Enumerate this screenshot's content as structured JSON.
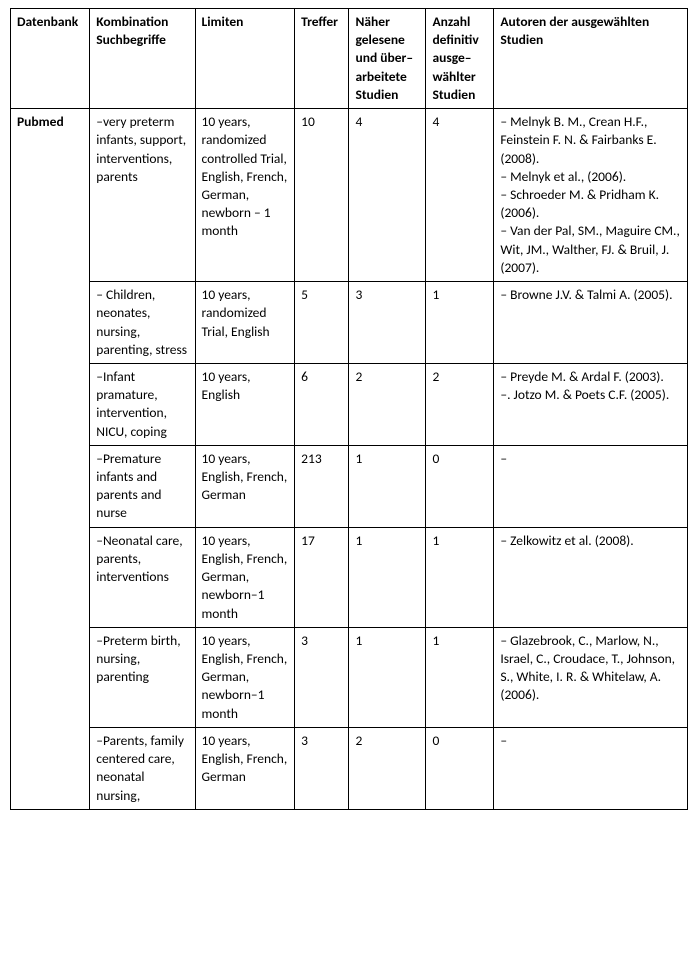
{
  "headers": {
    "db": "Datenbank",
    "komb": "Kombination Suchbegriffe",
    "lim": "Limiten",
    "tref": "Treffer",
    "nah": "Näher gelesene und über–arbeitete Studien",
    "anz": "Anzahl definitiv ausge–wählter Studien",
    "aut": "Autoren der ausgewählten Studien"
  },
  "database": "Pubmed",
  "rows": [
    {
      "komb": "–very preterm infants, support, interventions, parents",
      "lim": "10 years, randomized controlled Trial, English, French, German, newborn – 1 month",
      "tref": "10",
      "nah": "4",
      "anz": "4",
      "aut": "– Melnyk B. M., Crean H.F., Feinstein F. N. & Fairbanks E. (2008).\n– Melnyk et al., (2006).\n– Schroeder M. & Pridham K. (2006).\n– Van der Pal, SM., Maguire CM., Wit, JM., Walther, FJ. & Bruil, J. (2007)."
    },
    {
      "komb": "– Children, neonates, nursing, parenting, stress",
      "lim": "10 years, randomized Trial, English",
      "tref": "5",
      "nah": "3",
      "anz": "1",
      "aut": "– Browne J.V. & Talmi A. (2005)."
    },
    {
      "komb": "–Infant pramature, intervention, NICU, coping",
      "lim": "10 years, English",
      "tref": "6",
      "nah": "2",
      "anz": "2",
      "aut": "– Preyde M. & Ardal F. (2003).\n–. Jotzo M. & Poets C.F. (2005)."
    },
    {
      "komb": "–Premature infants and parents and nurse",
      "lim": "10 years, English, French, German",
      "tref": "213",
      "nah": "1",
      "anz": "0",
      "aut": "–"
    },
    {
      "komb": "–Neonatal care, parents, interventions",
      "lim": "10 years, English, French, German, newborn–1 month",
      "tref": "17",
      "nah": "1",
      "anz": "1",
      "aut": "– Zelkowitz et al. (2008)."
    },
    {
      "komb": "–Preterm birth, nursing, parenting",
      "lim": "10 years, English, French, German, newborn–1 month",
      "tref": "3",
      "nah": "1",
      "anz": "1",
      "aut": "– Glazebrook, C., Marlow, N., Israel, C., Croudace, T., Johnson, S., White, I. R. & Whitelaw, A. (2006)."
    },
    {
      "komb": "–Parents, family centered care, neonatal nursing,",
      "lim": "10 years, English, French, German",
      "tref": "3",
      "nah": "2",
      "anz": "0",
      "aut": "–"
    }
  ]
}
